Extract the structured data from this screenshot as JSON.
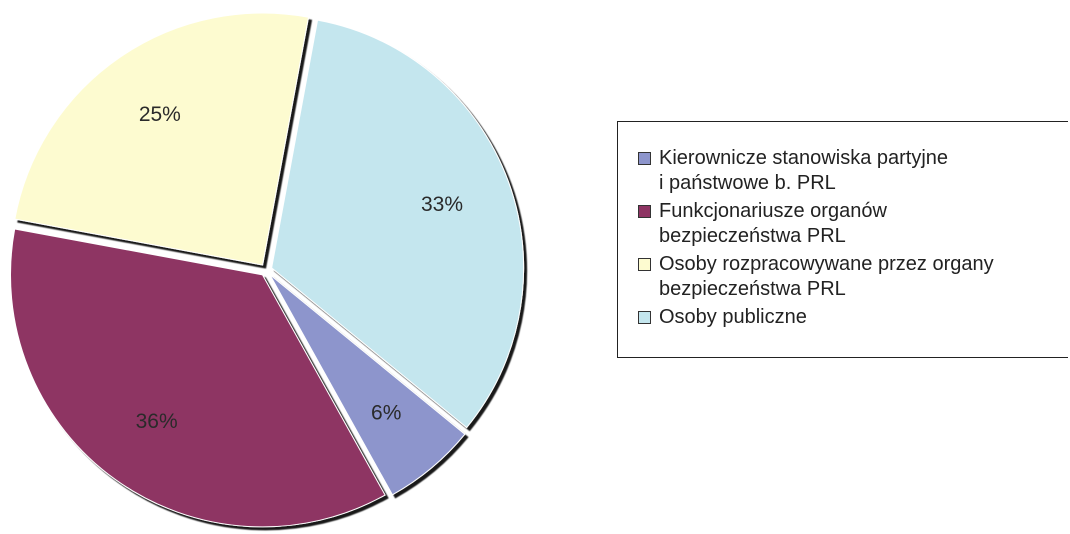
{
  "chart_data": {
    "type": "pie",
    "categories": [
      "Kierownicze stanowiska partyjne\ni państwowe b. PRL",
      "Funkcjonariusze organów\nbezpieczeństwa PRL",
      "Osoby rozpracowywane przez organy\nbezpieczeństwa PRL",
      "Osoby publiczne"
    ],
    "values": [
      6,
      36,
      25,
      33
    ],
    "value_labels": [
      "6%",
      "36%",
      "25%",
      "33%"
    ],
    "colors": [
      "#8d95cc",
      "#8e3463",
      "#fdfbd0",
      "#c4e6ee"
    ]
  }
}
